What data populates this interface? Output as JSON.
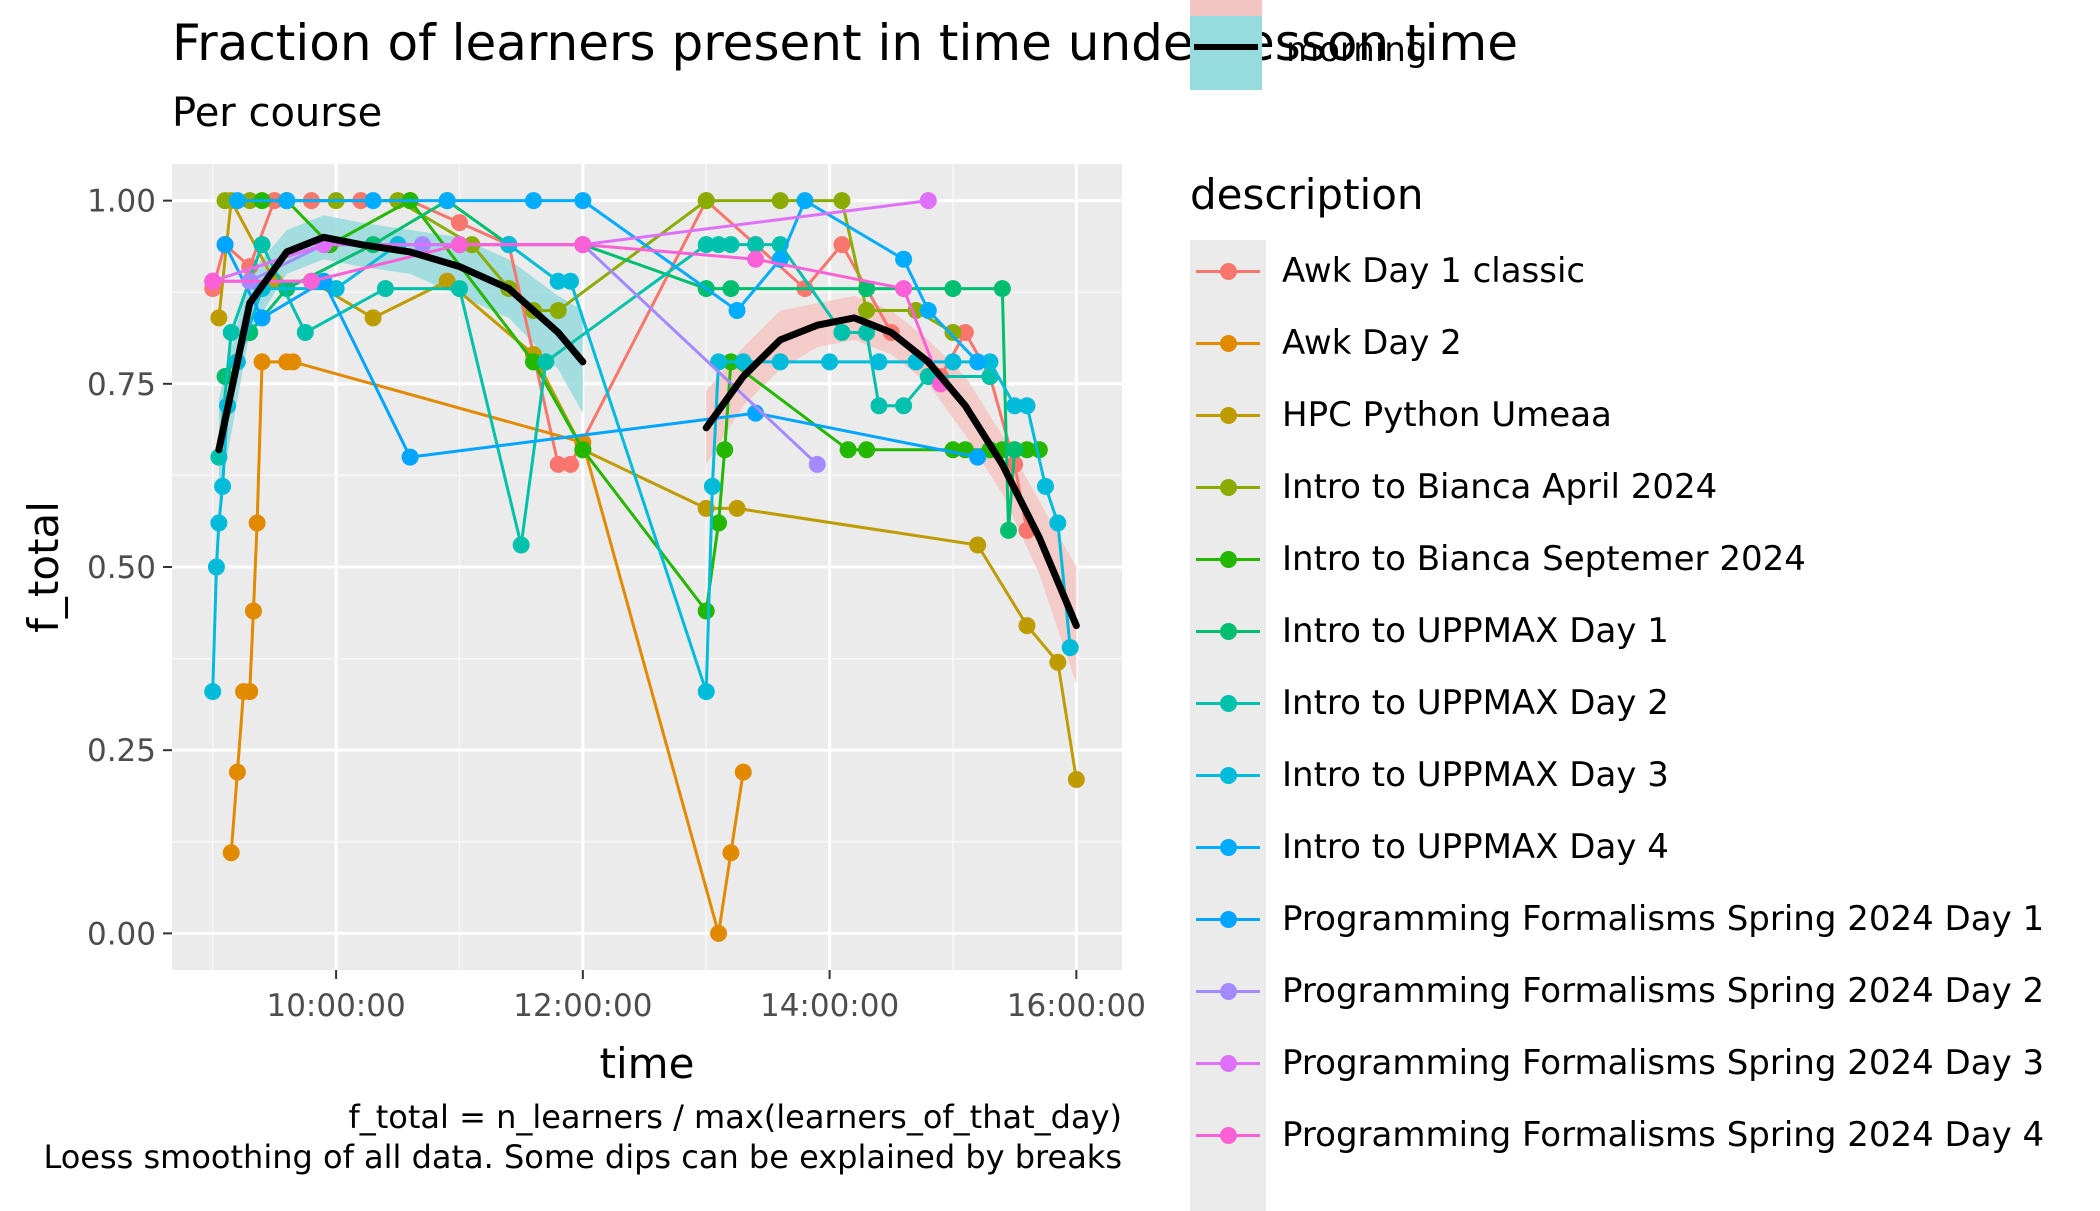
{
  "title": "Fraction of learners present in time under lesson time",
  "subtitle": "Per course",
  "caption_line1": "f_total = n_learners / max(learners_of_that_day)",
  "caption_line2": "Loess smoothing of all data. Some dips can be explained by breaks",
  "colors": {
    "panel": "#ebebeb",
    "grid": "#ffffff",
    "smooth_line": "#000000",
    "ribbon_morning": "#96dbdd",
    "ribbon_afternoon": "#f4c6c3"
  },
  "top_legend": {
    "label": "morning",
    "icon": "ribbon-key-icon"
  },
  "legend": {
    "title": "description",
    "items": [
      {
        "label": "Awk Day 1 classic",
        "color": "#F8766D"
      },
      {
        "label": "Awk Day 2",
        "color": "#E18A00"
      },
      {
        "label": "HPC Python Umeaa",
        "color": "#BE9C00"
      },
      {
        "label": "Intro to Bianca April 2024",
        "color": "#8CAB00"
      },
      {
        "label": "Intro to Bianca Septemer 2024",
        "color": "#24B700"
      },
      {
        "label": "Intro to UPPMAX Day 1",
        "color": "#00BE70"
      },
      {
        "label": "Intro to UPPMAX Day 2",
        "color": "#00C1AB"
      },
      {
        "label": "Intro to UPPMAX Day 3",
        "color": "#00BBDA"
      },
      {
        "label": "Intro to UPPMAX Day 4",
        "color": "#00ACFC"
      },
      {
        "label": "Programming Formalisms Spring 2024 Day 1",
        "color": "#00A5FF"
      },
      {
        "label": "Programming Formalisms Spring 2024 Day 2",
        "color": "#A58AFF"
      },
      {
        "label": "Programming Formalisms Spring 2024 Day 3",
        "color": "#DF70F8"
      },
      {
        "label": "Programming Formalisms Spring 2024 Day 4",
        "color": "#FB61D7"
      }
    ]
  },
  "chart_data": {
    "type": "line",
    "xlabel": "time",
    "ylabel": "f_total",
    "xlim": [
      8.67,
      16.37
    ],
    "ylim": [
      -0.05,
      1.05
    ],
    "x_ticks": [
      10,
      12,
      14,
      16
    ],
    "x_tick_labels": [
      "10:00:00",
      "12:00:00",
      "14:00:00",
      "16:00:00"
    ],
    "y_ticks": [
      0,
      0.25,
      0.5,
      0.75,
      1.0
    ],
    "y_tick_labels": [
      "0.00",
      "0.25",
      "0.50",
      "0.75",
      "1.00"
    ],
    "grid": true,
    "legend_position": "right",
    "series": [
      {
        "name": "Awk Day 1 classic",
        "color": "#F8766D",
        "x": [
          9.0,
          9.1,
          9.3,
          9.5,
          9.8,
          10.2,
          10.6,
          11.0,
          11.4,
          11.8,
          11.9,
          13.0,
          13.4,
          13.8,
          14.1,
          14.5,
          14.9,
          15.1,
          15.3,
          15.5,
          15.6
        ],
        "y": [
          0.88,
          0.94,
          0.91,
          1.0,
          1.0,
          1.0,
          1.0,
          0.97,
          0.94,
          0.64,
          0.64,
          1.0,
          0.94,
          0.88,
          0.94,
          0.82,
          0.76,
          0.82,
          0.76,
          0.64,
          0.55
        ]
      },
      {
        "name": "Awk Day 2",
        "color": "#E18A00",
        "x": [
          9.15,
          9.2,
          9.25,
          9.3,
          9.33,
          9.36,
          9.4,
          9.6,
          9.65,
          12.0,
          13.1,
          13.2,
          13.3
        ],
        "y": [
          0.11,
          0.22,
          0.33,
          0.33,
          0.44,
          0.56,
          0.78,
          0.78,
          0.78,
          0.67,
          0.0,
          0.11,
          0.22
        ]
      },
      {
        "name": "HPC Python Umeaa",
        "color": "#BE9C00",
        "x": [
          9.05,
          9.15,
          9.5,
          9.8,
          10.3,
          10.9,
          11.6,
          12.0,
          13.0,
          13.25,
          15.2,
          15.6,
          15.85,
          16.0
        ],
        "y": [
          0.84,
          1.0,
          0.89,
          0.89,
          0.84,
          0.89,
          0.79,
          0.66,
          0.58,
          0.58,
          0.53,
          0.42,
          0.37,
          0.21
        ]
      },
      {
        "name": "Intro to Bianca April 2024",
        "color": "#8CAB00",
        "x": [
          9.1,
          9.3,
          9.6,
          10.0,
          10.5,
          11.1,
          11.4,
          11.6,
          11.8,
          13.0,
          13.6,
          14.1,
          14.3,
          14.7,
          15.0
        ],
        "y": [
          1.0,
          1.0,
          1.0,
          1.0,
          1.0,
          0.94,
          0.88,
          0.85,
          0.85,
          1.0,
          1.0,
          1.0,
          0.85,
          0.85,
          0.82
        ]
      },
      {
        "name": "Intro to Bianca Septemer 2024",
        "color": "#24B700",
        "x": [
          9.4,
          9.6,
          9.95,
          10.6,
          11.6,
          12.0,
          13.0,
          13.1,
          13.15,
          13.2,
          14.15,
          14.3,
          15.0,
          15.1,
          15.3,
          15.4,
          15.5,
          15.6,
          15.7
        ],
        "y": [
          1.0,
          1.0,
          0.94,
          1.0,
          0.78,
          0.66,
          0.44,
          0.56,
          0.66,
          0.78,
          0.66,
          0.66,
          0.66,
          0.66,
          0.66,
          0.66,
          0.66,
          0.66,
          0.66
        ]
      },
      {
        "name": "Intro to UPPMAX Day 1",
        "color": "#00BE70",
        "x": [
          9.1,
          9.3,
          9.6,
          10.3,
          10.9,
          11.4,
          12.0,
          13.0,
          13.2,
          14.3,
          15.0,
          15.4,
          15.45,
          15.5
        ],
        "y": [
          0.76,
          0.82,
          0.88,
          0.94,
          1.0,
          0.94,
          0.94,
          0.88,
          0.88,
          0.88,
          0.88,
          0.88,
          0.55,
          0.66
        ]
      },
      {
        "name": "Intro to UPPMAX Day 2",
        "color": "#00C1AB",
        "x": [
          9.05,
          9.15,
          9.4,
          9.75,
          10.4,
          11.0,
          11.5,
          11.7,
          13.0,
          13.1,
          13.2,
          13.4,
          13.6,
          14.1,
          14.3,
          14.4,
          14.6,
          14.8,
          15.3
        ],
        "y": [
          0.65,
          0.82,
          0.94,
          0.82,
          0.88,
          0.88,
          0.53,
          0.78,
          0.94,
          0.94,
          0.94,
          0.94,
          0.94,
          0.82,
          0.82,
          0.72,
          0.72,
          0.76,
          0.76
        ]
      },
      {
        "name": "Intro to UPPMAX Day 3",
        "color": "#00BBDA",
        "x": [
          9.0,
          9.03,
          9.05,
          9.08,
          9.12,
          9.2,
          9.4,
          10.0,
          10.5,
          11.0,
          11.4,
          11.8,
          11.9,
          13.0,
          13.05,
          13.1,
          13.3,
          13.6,
          14.0,
          14.4,
          14.7,
          15.0,
          15.3,
          15.5,
          15.6,
          15.75,
          15.85,
          15.95
        ],
        "y": [
          0.33,
          0.5,
          0.56,
          0.61,
          0.72,
          0.78,
          0.88,
          0.88,
          0.94,
          0.94,
          0.94,
          0.89,
          0.89,
          0.33,
          0.61,
          0.78,
          0.78,
          0.78,
          0.78,
          0.78,
          0.78,
          0.78,
          0.78,
          0.72,
          0.72,
          0.61,
          0.56,
          0.39
        ]
      },
      {
        "name": "Intro to UPPMAX Day 4",
        "color": "#00ACFC",
        "x": [
          9.2,
          9.6,
          10.3,
          10.9,
          11.6,
          12.0,
          13.25,
          13.6,
          13.8,
          14.6,
          14.8,
          15.2
        ],
        "y": [
          1.0,
          1.0,
          1.0,
          1.0,
          1.0,
          1.0,
          0.85,
          0.92,
          1.0,
          0.92,
          0.85,
          0.78
        ]
      },
      {
        "name": "Programming Formalisms Spring 2024 Day 1",
        "color": "#00A5FF",
        "x": [
          9.1,
          9.4,
          9.9,
          10.6,
          13.4,
          15.2
        ],
        "y": [
          0.94,
          0.84,
          0.89,
          0.65,
          0.71,
          0.65
        ]
      },
      {
        "name": "Programming Formalisms Spring 2024 Day 2",
        "color": "#A58AFF",
        "x": [
          9.0,
          9.3,
          9.9,
          10.7,
          12.0,
          13.9
        ],
        "y": [
          0.89,
          0.89,
          0.94,
          0.94,
          0.94,
          0.64
        ]
      },
      {
        "name": "Programming Formalisms Spring 2024 Day 3",
        "color": "#DF70F8",
        "x": [
          9.0,
          9.9,
          12.0,
          14.8
        ],
        "y": [
          0.89,
          0.94,
          0.94,
          1.0
        ]
      },
      {
        "name": "Programming Formalisms Spring 2024 Day 4",
        "color": "#FB61D7",
        "x": [
          9.0,
          9.8,
          11.0,
          12.0,
          13.4,
          14.6,
          14.9
        ],
        "y": [
          0.89,
          0.89,
          0.94,
          0.94,
          0.92,
          0.88,
          0.75
        ]
      }
    ],
    "smooth": {
      "morning": {
        "x": [
          9.05,
          9.3,
          9.6,
          9.9,
          10.2,
          10.6,
          11.0,
          11.4,
          11.8,
          12.0
        ],
        "y": [
          0.66,
          0.86,
          0.93,
          0.95,
          0.94,
          0.93,
          0.91,
          0.88,
          0.82,
          0.78
        ]
      },
      "afternoon": {
        "x": [
          13.0,
          13.3,
          13.6,
          13.9,
          14.2,
          14.5,
          14.8,
          15.1,
          15.4,
          15.7,
          16.0
        ],
        "y": [
          0.69,
          0.76,
          0.81,
          0.83,
          0.84,
          0.82,
          0.78,
          0.72,
          0.64,
          0.54,
          0.42
        ]
      },
      "ribbon_halfwidth_morning": [
        0.07,
        0.04,
        0.03,
        0.03,
        0.03,
        0.03,
        0.04,
        0.04,
        0.05,
        0.07
      ],
      "ribbon_halfwidth_afternoon": [
        0.05,
        0.04,
        0.04,
        0.03,
        0.03,
        0.03,
        0.03,
        0.04,
        0.04,
        0.05,
        0.08
      ]
    }
  }
}
